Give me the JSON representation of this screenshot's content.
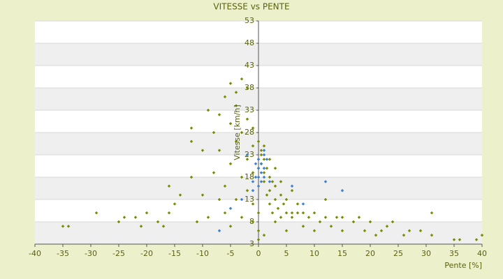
{
  "chart_data": {
    "type": "scatter",
    "title": "VITESSE vs PENTE",
    "x_label": "Pente [%]",
    "y_label": "Vitesse [km/h]",
    "xlim": [
      -40,
      40
    ],
    "xticks": [
      -40,
      -35,
      -30,
      -25,
      -20,
      -15,
      -10,
      -5,
      0,
      5,
      10,
      15,
      20,
      25,
      30,
      35,
      40
    ],
    "ylim": [
      3,
      53
    ],
    "yticks": [
      3,
      8,
      13,
      18,
      23,
      28,
      33,
      38,
      43,
      48,
      53
    ],
    "grid": true,
    "series": [
      {
        "color": "#7a8a00",
        "x": [
          -35,
          -34,
          -29,
          -25,
          -24,
          -22,
          -21,
          -20,
          -18,
          -17,
          -16,
          -16,
          -15,
          -14,
          -12,
          -12,
          -12,
          -11,
          -10,
          -10,
          -9,
          -9,
          -8,
          -8,
          -7,
          -7,
          -7,
          -6,
          -6,
          -6,
          -5,
          -5,
          -5,
          -5,
          -4,
          -4,
          -4,
          -4,
          -3,
          -3,
          -3,
          -3,
          -2,
          -2,
          -2,
          -2,
          -1,
          -1,
          -1,
          -1,
          -1,
          0,
          0,
          0,
          0,
          0,
          0,
          0,
          0.5,
          0.5,
          0.5,
          1,
          1,
          1,
          1,
          1,
          1.5,
          1.5,
          2,
          2,
          2,
          2,
          2.5,
          2.5,
          3,
          3,
          3,
          3,
          3.5,
          4,
          4,
          4,
          4.5,
          5,
          5,
          5,
          6,
          6,
          6,
          7,
          7,
          8,
          8,
          9,
          10,
          10,
          11,
          12,
          12,
          13,
          14,
          15,
          15,
          17,
          18,
          19,
          20,
          21,
          22,
          23,
          24,
          26,
          27,
          29,
          31,
          31,
          35,
          36,
          39,
          40
        ],
        "y": [
          7,
          7,
          10,
          8,
          9,
          9,
          7,
          10,
          8,
          7,
          10,
          16,
          12,
          14,
          18,
          26,
          29,
          8,
          14,
          24,
          33,
          9,
          19,
          28,
          13,
          24,
          32,
          16,
          36,
          10,
          21,
          39,
          30,
          7,
          13,
          26,
          37,
          34,
          18,
          28,
          40,
          9,
          22,
          31,
          38,
          15,
          25,
          19,
          29,
          12,
          8,
          26,
          22,
          20,
          18,
          6,
          4,
          10,
          24,
          21,
          23,
          19,
          22,
          25,
          17,
          5,
          20,
          14,
          18,
          22,
          15,
          12,
          17,
          10,
          16,
          13,
          20,
          8,
          11,
          14,
          9,
          17,
          12,
          10,
          13,
          6,
          10,
          15,
          9,
          10,
          12,
          10,
          7,
          9,
          10,
          6,
          8,
          9,
          13,
          7,
          9,
          9,
          6,
          8,
          9,
          6,
          8,
          5,
          6,
          7,
          8,
          5,
          6,
          6,
          10,
          5,
          4,
          4,
          4,
          5
        ]
      },
      {
        "color": "#3a7fd0",
        "x": [
          0,
          0,
          0,
          0,
          0.5,
          0.5,
          0.5,
          1,
          1,
          1,
          1.5,
          -0.5,
          -0.5,
          -1,
          -1,
          2,
          -7,
          -5,
          -3,
          6,
          12,
          15,
          8,
          -2,
          1
        ],
        "y": [
          22,
          20,
          18,
          16,
          21,
          19,
          17,
          23,
          20,
          18,
          22,
          21,
          18,
          17,
          15,
          17,
          6,
          11,
          13,
          16,
          17,
          15,
          12,
          23,
          24
        ]
      }
    ]
  }
}
